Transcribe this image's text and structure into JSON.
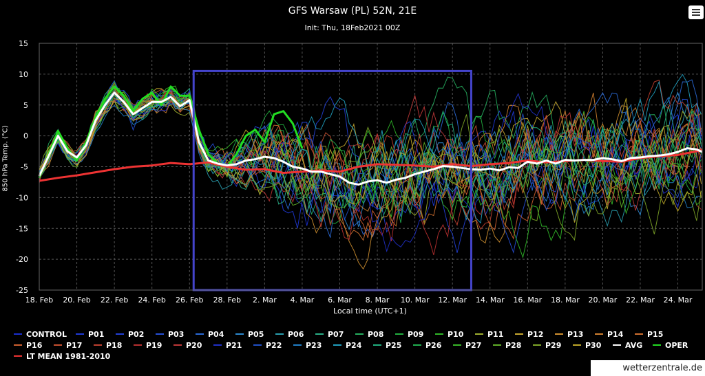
{
  "header": {
    "title": "GFS Warsaw (PL) 52N, 21E",
    "subtitle": "Init: Thu, 18Feb2021 00Z"
  },
  "footer": {
    "credit": "wetterzentrale.de"
  },
  "colors": {
    "background": "#000000",
    "avg": "#ffffff",
    "oper": "#22dd22",
    "lt_mean": "#ee3333",
    "highlight_box": "#4444cc"
  },
  "chart_data": {
    "type": "line",
    "title": "GFS Warsaw (PL) 52N, 21E",
    "subtitle": "Init: Thu, 18Feb2021 00Z",
    "xlabel": "Local time (UTC+1)",
    "ylabel": "850 hPa Temp. (°C)",
    "ylim": [
      -25,
      15
    ],
    "yticks": [
      15,
      10,
      5,
      0,
      -5,
      -10,
      -15,
      -20,
      -25
    ],
    "xlim_days": [
      0,
      35.3
    ],
    "xticks": [
      "18. Feb",
      "20. Feb",
      "22. Feb",
      "24. Feb",
      "26. Feb",
      "28. Feb",
      "2. Mar",
      "4. Mar",
      "6. Mar",
      "8. Mar",
      "10. Mar",
      "12. Mar",
      "14. Mar",
      "16. Mar",
      "18. Mar",
      "20. Mar",
      "22. Mar",
      "24. Mar"
    ],
    "grid": true,
    "legend_position": "bottom",
    "highlight_box": {
      "x_from": "26. Feb",
      "x_to": "13. Mar",
      "y_from": -25,
      "y_to": 10.5
    },
    "members": {
      "names": [
        "CONTROL",
        "P01",
        "P02",
        "P03",
        "P04",
        "P05",
        "P06",
        "P07",
        "P08",
        "P09",
        "P10",
        "P11",
        "P12",
        "P13",
        "P14",
        "P15",
        "P16",
        "P17",
        "P18",
        "P19",
        "P20",
        "P21",
        "P22",
        "P23",
        "P24",
        "P25",
        "P26",
        "P27",
        "P28",
        "P29",
        "P30"
      ],
      "colors": [
        "#1a2fd0",
        "#1f3ad8",
        "#2240d8",
        "#2650d8",
        "#2a6ad8",
        "#2d8ad0",
        "#2aa0b0",
        "#2ab088",
        "#26b060",
        "#22b040",
        "#30b828",
        "#a0b030",
        "#c8a830",
        "#d09030",
        "#d08030",
        "#d07030",
        "#d06030",
        "#c85030",
        "#c04030",
        "#b83030",
        "#c03838",
        "#2030c8",
        "#2050c8",
        "#2080c8",
        "#20a0c0",
        "#20b080",
        "#20b050",
        "#38b828",
        "#60b028",
        "#80a828",
        "#c0a828"
      ]
    },
    "series": [
      {
        "name": "AVG",
        "days": [
          0,
          1,
          1.5,
          2,
          2.5,
          3,
          3.5,
          4,
          4.5,
          5,
          5.5,
          6,
          6.5,
          7,
          7.5,
          8,
          8.5,
          9,
          9.5,
          10,
          10.5,
          11,
          11.5,
          12,
          12.5,
          13,
          13.5,
          14,
          14.5,
          15,
          15.5,
          16,
          16.5,
          17,
          17.5,
          18,
          18.5,
          19,
          19.5,
          20,
          20.5,
          21,
          21.5,
          22,
          22.5,
          23,
          23.5,
          24,
          24.5,
          25,
          25.5,
          26,
          26.5,
          27,
          27.5,
          28,
          28.5,
          29,
          29.5,
          30,
          30.5,
          31,
          31.5,
          32,
          32.5,
          33,
          33.5,
          34,
          34.5,
          35,
          35.3
        ],
        "values": [
          -6.5,
          0,
          -2.5,
          -3.5,
          -1.5,
          2.5,
          5,
          7,
          5.5,
          3.5,
          4.5,
          5.5,
          5.5,
          6.3,
          4.8,
          5.8,
          -1,
          -4,
          -4.5,
          -4.8,
          -4.6,
          -4,
          -3.8,
          -3.4,
          -3.6,
          -4.2,
          -5,
          -5.3,
          -5.8,
          -5.8,
          -6.2,
          -6.6,
          -7.6,
          -7.9,
          -7.4,
          -7.2,
          -7.6,
          -7.1,
          -6.8,
          -6.2,
          -5.8,
          -5.4,
          -4.9,
          -5,
          -5.2,
          -5.4,
          -5.5,
          -5.3,
          -5.6,
          -5.1,
          -5.2,
          -4.2,
          -4.5,
          -4,
          -4.5,
          -3.9,
          -4,
          -3.9,
          -3.9,
          -3.6,
          -3.8,
          -4.1,
          -3.6,
          -3.5,
          -3.3,
          -3.2,
          -3,
          -2.6,
          -2,
          -2.2,
          -2.6
        ]
      },
      {
        "name": "OPER",
        "days": [
          0,
          1,
          1.5,
          2,
          2.5,
          3,
          3.5,
          4,
          4.5,
          5,
          5.5,
          6,
          6.5,
          7,
          7.5,
          8,
          8.5,
          9,
          9.5,
          10,
          10.5,
          11,
          11.5,
          12,
          12.5,
          13,
          13.5,
          14
        ],
        "values": [
          -6.8,
          0.8,
          -2,
          -4,
          -1,
          3,
          6,
          8,
          6.5,
          4,
          6,
          7,
          5,
          8,
          6.5,
          6.5,
          1,
          -3,
          -4.5,
          -5,
          -3,
          0,
          1,
          -1,
          3.5,
          4,
          2,
          -2
        ]
      },
      {
        "name": "LT MEAN 1981-2010",
        "days": [
          0,
          1,
          2,
          3,
          4,
          5,
          6,
          7,
          8,
          9,
          10,
          11,
          12,
          13,
          14,
          15,
          16,
          17,
          18,
          19,
          20,
          21,
          22,
          23,
          24,
          25,
          26,
          27,
          28,
          29,
          30,
          31,
          32,
          33,
          34,
          35,
          35.3
        ],
        "values": [
          -7.3,
          -6.8,
          -6.4,
          -5.9,
          -5.4,
          -5,
          -4.8,
          -4.4,
          -4.6,
          -4.3,
          -5,
          -5.5,
          -5.4,
          -6,
          -5.8,
          -5.6,
          -5.8,
          -5,
          -4.6,
          -4.7,
          -4.8,
          -5,
          -4.6,
          -4.9,
          -4.6,
          -4.4,
          -4,
          -4.3,
          -4.1,
          -3.9,
          -4.1,
          -4.2,
          -3.6,
          -3.3,
          -3.1,
          -2.5,
          -2.2
        ]
      }
    ]
  }
}
